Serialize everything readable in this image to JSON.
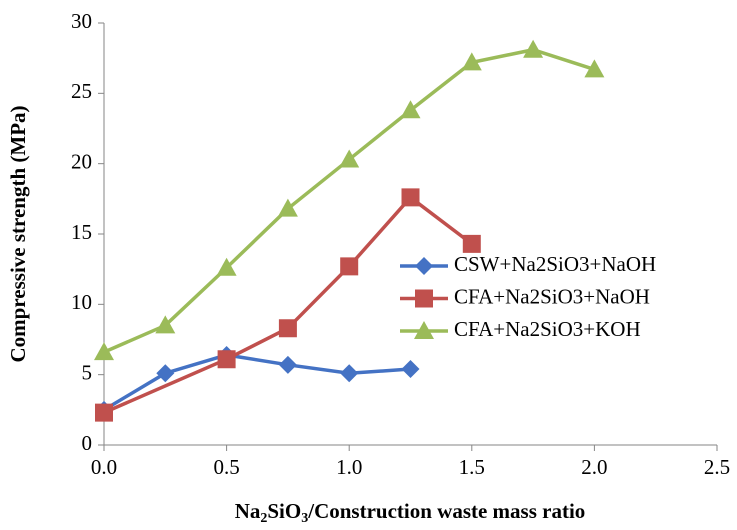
{
  "chart_data": {
    "type": "line",
    "x_label": "Na2SiO3/Construction waste mass ratio",
    "y_label": "Compressive strength (MPa)",
    "xlim": [
      0,
      2.5
    ],
    "xticks": [
      {
        "value": 0,
        "label": "0.0"
      },
      {
        "value": 0.5,
        "label": "0.5"
      },
      {
        "value": 1,
        "label": "1.0"
      },
      {
        "value": 1.5,
        "label": "1.5"
      },
      {
        "value": 2,
        "label": "2.0"
      },
      {
        "value": 2.5,
        "label": "2.5"
      }
    ],
    "ylim": [
      0,
      30
    ],
    "yticks": [
      0,
      5,
      10,
      15,
      20,
      25,
      30
    ],
    "grid": false,
    "legend": "right",
    "series": [
      {
        "name": "CSW+Na2SiO3+NaOH",
        "color": "#4472c4",
        "marker": "diamond",
        "x": [
          0,
          0.25,
          0.5,
          0.75,
          1,
          1.25
        ],
        "values": [
          2.5,
          5.1,
          6.4,
          5.7,
          5.1,
          5.4
        ]
      },
      {
        "name": "CFA+Na2SiO3+NaOH",
        "color": "#c0504d",
        "marker": "square",
        "x": [
          0,
          0.5,
          0.75,
          1,
          1.25,
          1.5
        ],
        "values": [
          2.3,
          6.1,
          8.3,
          12.7,
          17.6,
          14.3
        ]
      },
      {
        "name": "CFA+Na2SiO3+KOH",
        "color": "#9bbb59",
        "marker": "triangle",
        "x": [
          0,
          0.25,
          0.5,
          0.75,
          1,
          1.25,
          1.5,
          1.75,
          2
        ],
        "values": [
          6.6,
          8.5,
          12.6,
          16.8,
          20.3,
          23.8,
          27.2,
          28.1,
          26.7
        ]
      }
    ]
  }
}
